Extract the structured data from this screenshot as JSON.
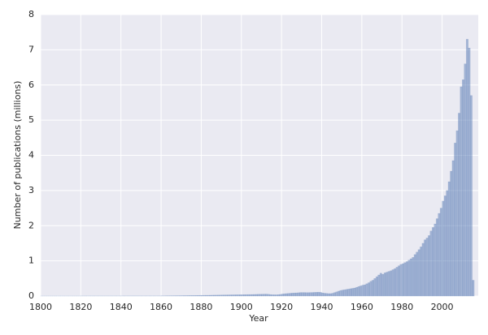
{
  "chart_data": {
    "type": "histogram",
    "xlabel": "Year",
    "ylabel": "Number of publications (millions)",
    "bins": [
      1800,
      1801,
      1802,
      1803,
      1804,
      1805,
      1806,
      1807,
      1808,
      1809,
      1810,
      1811,
      1812,
      1813,
      1814,
      1815,
      1816,
      1817,
      1818,
      1819,
      1820,
      1821,
      1822,
      1823,
      1824,
      1825,
      1826,
      1827,
      1828,
      1829,
      1830,
      1831,
      1832,
      1833,
      1834,
      1835,
      1836,
      1837,
      1838,
      1839,
      1840,
      1841,
      1842,
      1843,
      1844,
      1845,
      1846,
      1847,
      1848,
      1849,
      1850,
      1851,
      1852,
      1853,
      1854,
      1855,
      1856,
      1857,
      1858,
      1859,
      1860,
      1861,
      1862,
      1863,
      1864,
      1865,
      1866,
      1867,
      1868,
      1869,
      1870,
      1871,
      1872,
      1873,
      1874,
      1875,
      1876,
      1877,
      1878,
      1879,
      1880,
      1881,
      1882,
      1883,
      1884,
      1885,
      1886,
      1887,
      1888,
      1889,
      1890,
      1891,
      1892,
      1893,
      1894,
      1895,
      1896,
      1897,
      1898,
      1899,
      1900,
      1901,
      1902,
      1903,
      1904,
      1905,
      1906,
      1907,
      1908,
      1909,
      1910,
      1911,
      1912,
      1913,
      1914,
      1915,
      1916,
      1917,
      1918,
      1919,
      1920,
      1921,
      1922,
      1923,
      1924,
      1925,
      1926,
      1927,
      1928,
      1929,
      1930,
      1931,
      1932,
      1933,
      1934,
      1935,
      1936,
      1937,
      1938,
      1939,
      1940,
      1941,
      1942,
      1943,
      1944,
      1945,
      1946,
      1947,
      1948,
      1949,
      1950,
      1951,
      1952,
      1953,
      1954,
      1955,
      1956,
      1957,
      1958,
      1959,
      1960,
      1961,
      1962,
      1963,
      1964,
      1965,
      1966,
      1967,
      1968,
      1969,
      1970,
      1971,
      1972,
      1973,
      1974,
      1975,
      1976,
      1977,
      1978,
      1979,
      1980,
      1981,
      1982,
      1983,
      1984,
      1985,
      1986,
      1987,
      1988,
      1989,
      1990,
      1991,
      1992,
      1993,
      1994,
      1995,
      1996,
      1997,
      1998,
      1999,
      2000,
      2001,
      2002,
      2003,
      2004,
      2005,
      2006,
      2007,
      2008,
      2009,
      2010,
      2011,
      2012,
      2013,
      2014,
      2015,
      2016
    ],
    "counts": [
      0.002,
      0.002,
      0.002,
      0.002,
      0.002,
      0.002,
      0.002,
      0.002,
      0.002,
      0.002,
      0.002,
      0.002,
      0.002,
      0.002,
      0.002,
      0.002,
      0.002,
      0.002,
      0.002,
      0.002,
      0.003,
      0.003,
      0.003,
      0.003,
      0.003,
      0.003,
      0.003,
      0.003,
      0.003,
      0.003,
      0.003,
      0.003,
      0.003,
      0.003,
      0.003,
      0.003,
      0.003,
      0.003,
      0.003,
      0.003,
      0.004,
      0.004,
      0.004,
      0.004,
      0.004,
      0.004,
      0.004,
      0.004,
      0.004,
      0.004,
      0.004,
      0.004,
      0.004,
      0.004,
      0.004,
      0.004,
      0.004,
      0.004,
      0.004,
      0.004,
      0.006,
      0.006,
      0.007,
      0.007,
      0.008,
      0.008,
      0.009,
      0.009,
      0.01,
      0.01,
      0.011,
      0.012,
      0.012,
      0.013,
      0.014,
      0.015,
      0.015,
      0.016,
      0.017,
      0.018,
      0.019,
      0.02,
      0.021,
      0.022,
      0.023,
      0.024,
      0.025,
      0.026,
      0.027,
      0.028,
      0.029,
      0.03,
      0.031,
      0.032,
      0.033,
      0.034,
      0.035,
      0.036,
      0.037,
      0.038,
      0.039,
      0.04,
      0.041,
      0.042,
      0.043,
      0.044,
      0.046,
      0.048,
      0.05,
      0.051,
      0.052,
      0.054,
      0.055,
      0.05,
      0.042,
      0.038,
      0.036,
      0.036,
      0.04,
      0.048,
      0.058,
      0.065,
      0.07,
      0.075,
      0.08,
      0.085,
      0.088,
      0.09,
      0.095,
      0.1,
      0.1,
      0.1,
      0.098,
      0.098,
      0.1,
      0.102,
      0.105,
      0.108,
      0.11,
      0.105,
      0.09,
      0.08,
      0.075,
      0.07,
      0.07,
      0.08,
      0.1,
      0.12,
      0.14,
      0.16,
      0.17,
      0.18,
      0.19,
      0.2,
      0.21,
      0.22,
      0.23,
      0.25,
      0.27,
      0.29,
      0.31,
      0.32,
      0.35,
      0.38,
      0.42,
      0.45,
      0.5,
      0.55,
      0.6,
      0.65,
      0.62,
      0.66,
      0.68,
      0.7,
      0.72,
      0.75,
      0.78,
      0.82,
      0.86,
      0.9,
      0.92,
      0.95,
      0.98,
      1.02,
      1.06,
      1.1,
      1.18,
      1.25,
      1.32,
      1.4,
      1.5,
      1.6,
      1.65,
      1.72,
      1.85,
      1.95,
      2.05,
      2.2,
      2.35,
      2.5,
      2.7,
      2.85,
      3.0,
      3.25,
      3.55,
      3.85,
      4.35,
      4.7,
      5.2,
      5.95,
      6.15,
      6.6,
      7.3,
      7.05,
      5.7,
      0.45
    ],
    "color": "#4c72b0",
    "xlim": [
      1800,
      2018
    ],
    "ylim": [
      0,
      8
    ],
    "xticks": [
      1800,
      1820,
      1840,
      1860,
      1880,
      1900,
      1920,
      1940,
      1960,
      1980,
      2000
    ],
    "yticks": [
      0,
      1,
      2,
      3,
      4,
      5,
      6,
      7,
      8
    ],
    "grid": true
  }
}
